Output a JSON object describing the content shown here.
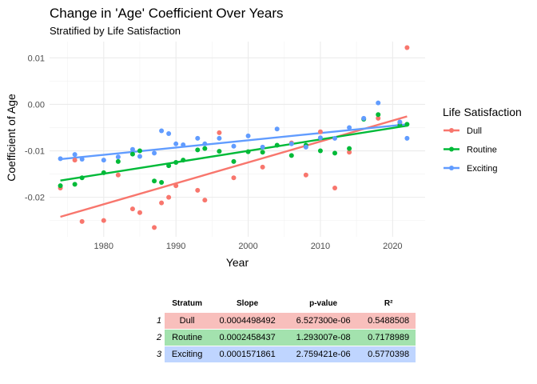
{
  "chart_data": {
    "type": "scatter",
    "title": "Change in 'Age' Coefficient Over Years",
    "subtitle": "Stratified by Life Satisfaction",
    "xlabel": "Year",
    "ylabel": "Coefficient of Age",
    "xlim": [
      1972.5,
      2024.5
    ],
    "ylim": [
      -0.0285,
      0.0135
    ],
    "xticks": [
      1980,
      1990,
      2000,
      2010,
      2020
    ],
    "yticks": [
      -0.02,
      -0.01,
      0.0,
      0.01
    ],
    "ytick_labels": [
      "-0.02",
      "-0.01",
      "0.00",
      "0.01"
    ],
    "grid": true,
    "legend": {
      "title": "Life Satisfaction",
      "position": "right"
    },
    "series": [
      {
        "name": "Dull",
        "color": "#F8766D",
        "points": [
          [
            1974,
            -0.018
          ],
          [
            1976,
            -0.012
          ],
          [
            1977,
            -0.0252
          ],
          [
            1980,
            -0.025
          ],
          [
            1982,
            -0.0152
          ],
          [
            1984,
            -0.0225
          ],
          [
            1985,
            -0.0233
          ],
          [
            1987,
            -0.0265
          ],
          [
            1988,
            -0.0212
          ],
          [
            1989,
            -0.02
          ],
          [
            1990,
            -0.0175
          ],
          [
            1993,
            -0.0185
          ],
          [
            1994,
            -0.0206
          ],
          [
            1996,
            -0.0061
          ],
          [
            1998,
            -0.0158
          ],
          [
            2002,
            -0.0135
          ],
          [
            2006,
            -0.0083
          ],
          [
            2008,
            -0.0152
          ],
          [
            2010,
            -0.0059
          ],
          [
            2012,
            -0.018
          ],
          [
            2014,
            -0.0103
          ],
          [
            2016,
            -0.0031
          ],
          [
            2018,
            -0.003
          ],
          [
            2021,
            -0.004
          ],
          [
            2022,
            0.0122
          ]
        ],
        "fit": [
          [
            1974,
            -0.0242
          ],
          [
            2022,
            -0.0026
          ]
        ]
      },
      {
        "name": "Routine",
        "color": "#00BA38",
        "points": [
          [
            1974,
            -0.0175
          ],
          [
            1976,
            -0.0172
          ],
          [
            1977,
            -0.0158
          ],
          [
            1980,
            -0.0147
          ],
          [
            1982,
            -0.0123
          ],
          [
            1984,
            -0.0107
          ],
          [
            1985,
            -0.01
          ],
          [
            1987,
            -0.0165
          ],
          [
            1988,
            -0.0168
          ],
          [
            1989,
            -0.0132
          ],
          [
            1990,
            -0.0125
          ],
          [
            1991,
            -0.012
          ],
          [
            1993,
            -0.0098
          ],
          [
            1994,
            -0.0095
          ],
          [
            1996,
            -0.0101
          ],
          [
            1998,
            -0.0123
          ],
          [
            2000,
            -0.0102
          ],
          [
            2002,
            -0.0103
          ],
          [
            2004,
            -0.0088
          ],
          [
            2006,
            -0.011
          ],
          [
            2008,
            -0.0088
          ],
          [
            2010,
            -0.01
          ],
          [
            2012,
            -0.0105
          ],
          [
            2014,
            -0.0095
          ],
          [
            2016,
            -0.0032
          ],
          [
            2018,
            -0.0022
          ],
          [
            2021,
            -0.0045
          ],
          [
            2022,
            -0.0043
          ]
        ],
        "fit": [
          [
            1974,
            -0.0164
          ],
          [
            2022,
            -0.0046
          ]
        ]
      },
      {
        "name": "Exciting",
        "color": "#619CFF",
        "points": [
          [
            1974,
            -0.0117
          ],
          [
            1976,
            -0.0108
          ],
          [
            1977,
            -0.0118
          ],
          [
            1980,
            -0.012
          ],
          [
            1982,
            -0.0113
          ],
          [
            1984,
            -0.0097
          ],
          [
            1985,
            -0.0112
          ],
          [
            1987,
            -0.0105
          ],
          [
            1988,
            -0.0057
          ],
          [
            1989,
            -0.0063
          ],
          [
            1990,
            -0.0085
          ],
          [
            1991,
            -0.0087
          ],
          [
            1993,
            -0.0073
          ],
          [
            1994,
            -0.0085
          ],
          [
            1996,
            -0.0073
          ],
          [
            1998,
            -0.009
          ],
          [
            2000,
            -0.0068
          ],
          [
            2002,
            -0.0092
          ],
          [
            2004,
            -0.0053
          ],
          [
            2006,
            -0.0085
          ],
          [
            2008,
            -0.0092
          ],
          [
            2010,
            -0.0072
          ],
          [
            2012,
            -0.0073
          ],
          [
            2014,
            -0.005
          ],
          [
            2016,
            -0.003
          ],
          [
            2018,
            0.0003
          ],
          [
            2021,
            -0.0038
          ],
          [
            2022,
            -0.0073
          ]
        ],
        "fit": [
          [
            1974,
            -0.0118
          ],
          [
            2022,
            -0.0043
          ]
        ]
      }
    ]
  },
  "stats_table": {
    "headers": [
      "Stratum",
      "Slope",
      "p-value",
      "R²"
    ],
    "rows": [
      {
        "index": "1",
        "stratum": "Dull",
        "slope": "0.0004498492",
        "pvalue": "6.527300e-06",
        "r2": "0.5488508",
        "bg": "#F8BFBC"
      },
      {
        "index": "2",
        "stratum": "Routine",
        "slope": "0.0002458437",
        "pvalue": "1.293007e-08",
        "r2": "0.7178989",
        "bg": "#A3E2AE"
      },
      {
        "index": "3",
        "stratum": "Exciting",
        "slope": "0.0001571861",
        "pvalue": "2.759421e-06",
        "r2": "0.5770398",
        "bg": "#BFD5FF"
      }
    ]
  }
}
